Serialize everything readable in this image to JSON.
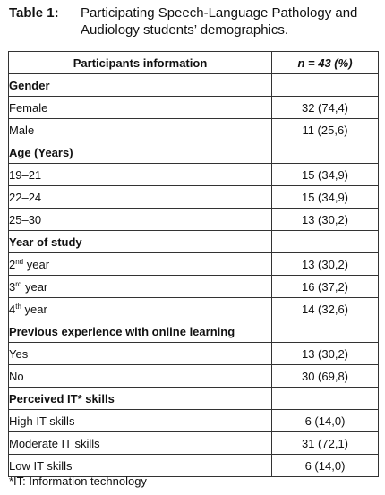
{
  "caption": {
    "label": "Table 1:",
    "text": "Participating Speech-Language Pathology and Audiology students’ demographics."
  },
  "header": {
    "col1": "Participants information",
    "col2_n": "n",
    "col2_rest": " = 43 (%)"
  },
  "gender": {
    "title": "Gender",
    "female": {
      "label": "Female",
      "value": "32 (74,4)"
    },
    "male": {
      "label": "Male",
      "value": "11 (25,6)"
    }
  },
  "age": {
    "title": "Age (Years)",
    "a1": {
      "label": "19–21",
      "value": "15 (34,9)"
    },
    "a2": {
      "label": "22–24",
      "value": "15 (34,9)"
    },
    "a3": {
      "label": "25–30",
      "value": "13 (30,2)"
    }
  },
  "year": {
    "title": "Year of study",
    "y2": {
      "num": "2",
      "sup": "nd",
      "word": " year",
      "value": "13 (30,2)"
    },
    "y3": {
      "num": "3",
      "sup": "rd",
      "word": " year",
      "value": "16 (37,2)"
    },
    "y4": {
      "num": "4",
      "sup": "th",
      "word": " year",
      "value": "14 (32,6)"
    }
  },
  "online": {
    "title": "Previous experience with online learning",
    "yes": {
      "label": "Yes",
      "value": "13 (30,2)"
    },
    "no": {
      "label": "No",
      "value": "30 (69,8)"
    }
  },
  "it": {
    "title": "Perceived IT* skills",
    "high": {
      "label": "High IT skills",
      "value": "6 (14,0)"
    },
    "moderate": {
      "label": "Moderate IT skills",
      "value": "31 (72,1)"
    },
    "low": {
      "label": "Low IT skills",
      "value": "6 (14,0)"
    }
  },
  "footnote": "*IT: Information technology"
}
